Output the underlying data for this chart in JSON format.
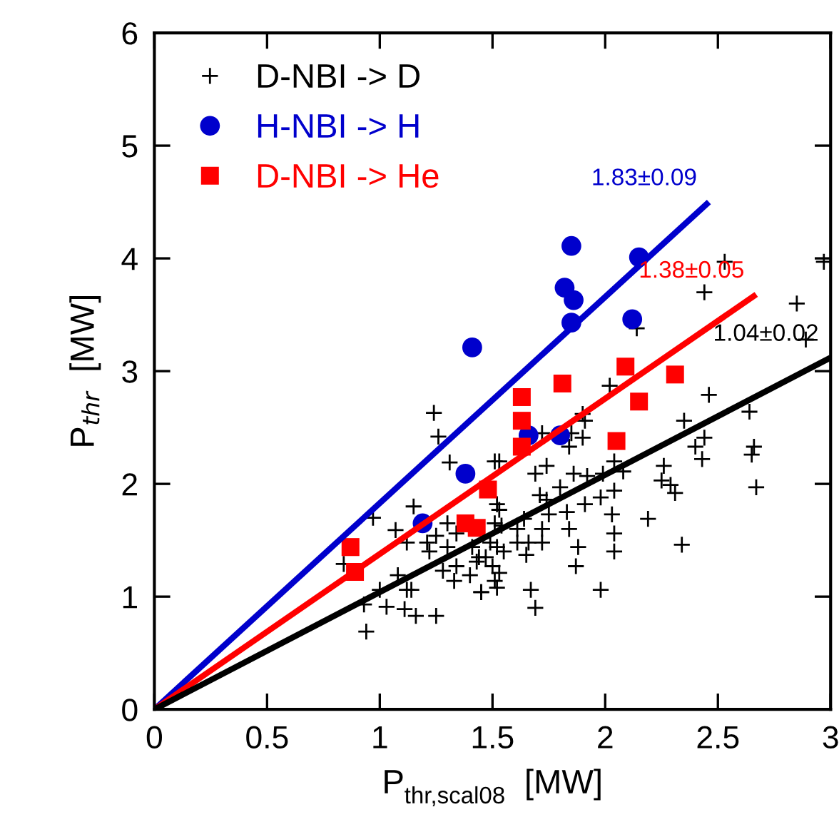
{
  "chart_data": {
    "type": "scatter",
    "xlabel": "P$_{thr,scal08}$  [MW]",
    "ylabel": "P$_{thr}$  [MW]",
    "xlim": [
      0,
      3
    ],
    "ylim": [
      0,
      6
    ],
    "xticks": [
      0,
      0.5,
      1,
      1.5,
      2,
      2.5,
      3
    ],
    "yticks": [
      0,
      1,
      2,
      3,
      4,
      5,
      6
    ],
    "grid": false,
    "legend": "top left",
    "series": [
      {
        "name": "D-NBI -> D",
        "color": "#000000",
        "marker": "cross",
        "x": [
          1.24,
          1.26,
          1.31,
          1.15,
          0.97,
          1.07,
          1.12,
          1.21,
          1.25,
          1.3,
          1.34,
          1.22,
          1.3,
          1.41,
          1.43,
          1.47,
          1.34,
          1.28,
          1.33,
          1.4,
          1.45,
          1.51,
          0.84,
          1.08,
          1.12,
          1.14,
          1.0,
          0.93,
          1.03,
          1.11,
          1.16,
          1.25,
          0.94,
          1.51,
          1.52,
          1.51,
          1.52,
          2.53,
          2.97,
          2.44,
          2.85,
          2.89,
          2.14,
          2.02,
          2.46,
          2.64,
          2.35,
          2.44,
          2.4,
          2.43,
          2.66,
          2.65,
          2.67,
          2.26,
          2.25,
          2.29,
          2.31,
          2.19,
          2.34,
          1.91,
          1.9,
          1.84,
          1.72,
          1.74,
          1.86,
          1.92,
          1.99,
          2.04,
          2.08,
          2.04,
          1.98,
          1.91,
          2.03,
          2.04,
          2.04,
          1.88,
          1.87,
          1.98,
          1.69,
          1.8,
          1.74,
          1.71,
          1.75,
          1.83,
          1.84,
          1.72,
          1.72,
          1.66,
          1.65,
          1.61,
          1.61,
          1.53,
          1.53,
          1.54,
          1.55,
          1.49,
          1.44,
          1.5,
          1.53,
          1.52,
          1.45,
          1.67,
          1.69,
          1.64,
          1.85,
          1.9
        ],
        "values": [
          2.63,
          2.42,
          2.19,
          1.8,
          1.7,
          1.59,
          1.48,
          1.48,
          1.54,
          1.65,
          1.56,
          1.4,
          1.44,
          1.44,
          1.31,
          1.35,
          1.27,
          1.23,
          1.14,
          1.19,
          1.04,
          1.14,
          1.29,
          1.19,
          1.06,
          1.06,
          1.06,
          0.93,
          0.91,
          0.89,
          0.83,
          0.83,
          0.69,
          2.2,
          1.82,
          1.65,
          1.44,
          3.97,
          3.97,
          3.7,
          3.6,
          3.28,
          3.38,
          2.87,
          2.79,
          2.64,
          2.56,
          2.41,
          2.33,
          2.22,
          2.33,
          2.26,
          1.97,
          2.16,
          2.03,
          1.99,
          1.92,
          1.69,
          1.46,
          2.56,
          2.41,
          2.33,
          2.45,
          2.16,
          2.09,
          2.07,
          2.09,
          2.2,
          2.11,
          1.94,
          1.88,
          1.82,
          1.73,
          1.56,
          1.4,
          1.44,
          1.27,
          1.06,
          2.09,
          1.97,
          1.86,
          1.9,
          1.73,
          1.75,
          1.6,
          1.6,
          1.48,
          1.48,
          1.37,
          1.6,
          1.48,
          1.77,
          2.2,
          1.63,
          1.4,
          1.48,
          1.35,
          1.27,
          1.21,
          1.08,
          1.04,
          1.06,
          0.9,
          1.69,
          2.45,
          2.62
        ]
      },
      {
        "name": "H-NBI -> H",
        "color": "#0000cc",
        "marker": "circle",
        "x": [
          1.19,
          1.38,
          1.41,
          1.66,
          1.8,
          1.82,
          1.85,
          1.85,
          1.86,
          2.12,
          2.15
        ],
        "values": [
          1.65,
          2.09,
          3.21,
          2.43,
          2.43,
          3.74,
          3.43,
          4.11,
          3.63,
          3.46,
          4.01
        ]
      },
      {
        "name": "D-NBI -> He",
        "color": "#ff0000",
        "marker": "square",
        "x": [
          0.87,
          0.89,
          1.38,
          1.43,
          1.48,
          1.63,
          1.63,
          1.63,
          1.81,
          2.09,
          2.15,
          2.31,
          2.05
        ],
        "values": [
          1.44,
          1.22,
          1.65,
          1.61,
          1.95,
          2.77,
          2.56,
          2.33,
          2.89,
          3.04,
          2.73,
          2.97,
          2.38
        ]
      },
      {
        "type": "line",
        "name": "1.83±0.09",
        "color": "#0000cc",
        "x": [
          0,
          2.46
        ],
        "values": [
          0,
          4.5
        ]
      },
      {
        "type": "line",
        "name": "1.38±0.05",
        "color": "#ff0000",
        "x": [
          0,
          2.67
        ],
        "values": [
          0,
          3.68
        ]
      },
      {
        "type": "line",
        "name": "1.04±0.02",
        "color": "#000000",
        "x": [
          0,
          3
        ],
        "values": [
          0,
          3.12
        ]
      }
    ]
  }
}
